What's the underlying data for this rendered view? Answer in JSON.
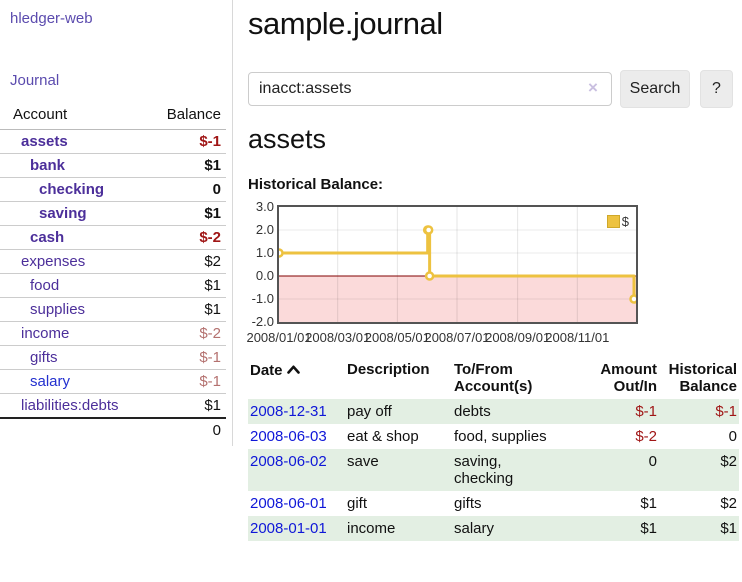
{
  "app": {
    "brand": "hledger-web"
  },
  "colors": {
    "accent_purple": "#5b4bae",
    "account_link_purple": "#4c2f9a",
    "link_blue": "#2330cf",
    "date_link_blue": "#0f17d8",
    "negative_strong": "#a01616",
    "negative_muted": "#b4716f",
    "row_green": "#e3efe3",
    "chart_line": "#edc240",
    "chart_negative_fill": "#fbdada",
    "chart_zero_line": "#800000"
  },
  "sidebar": {
    "journal_link": "Journal",
    "accounts": {
      "col_account": "Account",
      "col_balance": "Balance",
      "rows": [
        {
          "name": "assets",
          "balance": "$-1"
        },
        {
          "name": "bank",
          "balance": "$1"
        },
        {
          "name": "checking",
          "balance": "0"
        },
        {
          "name": "saving",
          "balance": "$1"
        },
        {
          "name": "cash",
          "balance": "$-2"
        },
        {
          "name": "expenses",
          "balance": "$2"
        },
        {
          "name": "food",
          "balance": "$1"
        },
        {
          "name": "supplies",
          "balance": "$1"
        },
        {
          "name": "income",
          "balance": "$-2"
        },
        {
          "name": "gifts",
          "balance": "$-1"
        },
        {
          "name": "salary",
          "balance": "$-1"
        },
        {
          "name": "liabilities:debts",
          "balance": "$1"
        }
      ],
      "total": "0"
    }
  },
  "main": {
    "title": "sample.journal",
    "search": {
      "value": "inacct:assets",
      "clear_glyph": "×",
      "search_label": "Search",
      "help_label": "?"
    },
    "account_heading": "assets"
  },
  "chart_data": {
    "type": "line",
    "style": "step",
    "title": "Historical Balance:",
    "x_range": [
      "2008-01-01",
      "2008-12-31"
    ],
    "ylim": [
      -2,
      3
    ],
    "y_tick_labels": [
      "3.0",
      "2.0",
      "1.0",
      "0.0",
      "-1.0",
      "-2.0"
    ],
    "y_tick_values": [
      3,
      2,
      1,
      0,
      -1,
      -2
    ],
    "x_tick_labels": [
      "2008/01/01",
      "2008/03/01",
      "2008/05/01",
      "2008/07/01",
      "2008/09/01",
      "2008/11/01"
    ],
    "x_tick_dates": [
      "2008-01-01",
      "2008-03-01",
      "2008-05-01",
      "2008-07-01",
      "2008-09-01",
      "2008-11-01"
    ],
    "legend_position": "top-right",
    "grid": true,
    "series": [
      {
        "name": "$",
        "points": [
          [
            "2008-01-01",
            1
          ],
          [
            "2008-06-01",
            2
          ],
          [
            "2008-06-02",
            2
          ],
          [
            "2008-06-03",
            0
          ],
          [
            "2008-12-31",
            -1
          ]
        ]
      }
    ]
  },
  "register": {
    "headers": {
      "date": "Date",
      "description": "Description",
      "accounts": "To/From Account(s)",
      "amount": "Amount Out/In",
      "balance": "Historical Balance"
    },
    "rows": [
      {
        "date": "2008-12-31",
        "description": "pay off",
        "accounts": "debts",
        "amount": "$-1",
        "balance": "$-1"
      },
      {
        "date": "2008-06-03",
        "description": "eat & shop",
        "accounts": "food, supplies",
        "amount": "$-2",
        "balance": "0"
      },
      {
        "date": "2008-06-02",
        "description": "save",
        "accounts": "saving, checking",
        "amount": "0",
        "balance": "$2"
      },
      {
        "date": "2008-06-01",
        "description": "gift",
        "accounts": "gifts",
        "amount": "$1",
        "balance": "$2"
      },
      {
        "date": "2008-01-01",
        "description": "income",
        "accounts": "salary",
        "amount": "$1",
        "balance": "$1"
      }
    ]
  }
}
